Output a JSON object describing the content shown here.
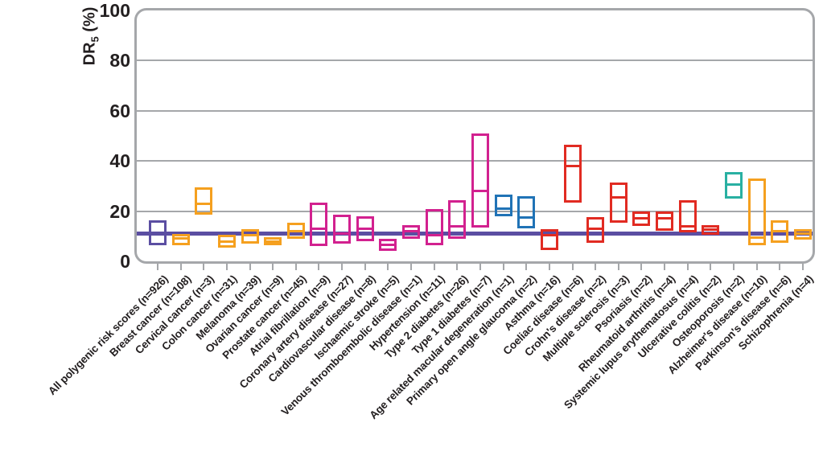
{
  "figure": {
    "ylabel": {
      "prefix": "DR",
      "sub": "5",
      "suffix": " (%)"
    }
  },
  "chart_data": {
    "type": "box",
    "title": "",
    "xlabel": "",
    "ylabel": "DR5 (%)",
    "ylim": [
      0,
      100
    ],
    "yticks": [
      0,
      20,
      40,
      60,
      80,
      100
    ],
    "grid": true,
    "legend": "none",
    "reference_line": {
      "value": 11,
      "color": "#5b4ea2"
    },
    "palette": {
      "purple": "#5b4ea2",
      "orange": "#f5a01f",
      "magenta": "#d2218f",
      "blue": "#2073b6",
      "red": "#e12b22",
      "teal": "#29b0a2"
    },
    "axis_color": "#a5a7aa",
    "text_color": "#231f20",
    "boxes": [
      {
        "label": "All polygenic risk scores (n=926)",
        "color": "purple",
        "low": 7,
        "median": 11,
        "high": 16
      },
      {
        "label": "Breast cancer (n=108)",
        "color": "orange",
        "low": 7,
        "median": 9,
        "high": 10.5
      },
      {
        "label": "Cervical cancer (n=3)",
        "color": "orange",
        "low": 19,
        "median": 23,
        "high": 29
      },
      {
        "label": "Colon cancer (n=31)",
        "color": "orange",
        "low": 6,
        "median": 8,
        "high": 10
      },
      {
        "label": "Melanoma (n=39)",
        "color": "orange",
        "low": 7.5,
        "median": 10.5,
        "high": 12.5
      },
      {
        "label": "Ovarian cancer (n=9)",
        "color": "orange",
        "low": 7,
        "median": 8,
        "high": 9
      },
      {
        "label": "Prostate cancer (n=45)",
        "color": "orange",
        "low": 9.5,
        "median": 12,
        "high": 15
      },
      {
        "label": "Atrial fibrillation (n=9)",
        "color": "magenta",
        "low": 6.5,
        "median": 13,
        "high": 23
      },
      {
        "label": "Coronary artery disease (n=27)",
        "color": "magenta",
        "low": 7.5,
        "median": 11,
        "high": 18
      },
      {
        "label": "Cardiovascular disease (n=8)",
        "color": "magenta",
        "low": 8.5,
        "median": 13,
        "high": 17.5
      },
      {
        "label": "Ischaemic stroke (n=5)",
        "color": "magenta",
        "low": 4.5,
        "median": 6.5,
        "high": 8.5
      },
      {
        "label": "Venous thromboembolic disease (n=1)",
        "color": "magenta",
        "low": 9.5,
        "median": 12,
        "high": 14
      },
      {
        "label": "Hypertension (n=11)",
        "color": "magenta",
        "low": 7,
        "median": 10.5,
        "high": 20.5
      },
      {
        "label": "Type 2 diabetes (n=26)",
        "color": "magenta",
        "low": 9.5,
        "median": 14,
        "high": 24
      },
      {
        "label": "Type 1 diabetes (n=7)",
        "color": "magenta",
        "low": 14,
        "median": 28,
        "high": 50.5
      },
      {
        "label": "Age related macular degeneration (n=1)",
        "color": "blue",
        "low": 18.5,
        "median": 21,
        "high": 26
      },
      {
        "label": "Primary open angle glaucoma (n=2)",
        "color": "blue",
        "low": 13.5,
        "median": 17.5,
        "high": 25.5
      },
      {
        "label": "Asthma (n=16)",
        "color": "red",
        "low": 5,
        "median": 10.5,
        "high": 12.5
      },
      {
        "label": "Coeliac disease (n=6)",
        "color": "red",
        "low": 24,
        "median": 38,
        "high": 46
      },
      {
        "label": "Crohn's disease (n=2)",
        "color": "red",
        "low": 8,
        "median": 13,
        "high": 17
      },
      {
        "label": "Multiple sclerosis (n=3)",
        "color": "red",
        "low": 16,
        "median": 25.5,
        "high": 31
      },
      {
        "label": "Psoriasis (n=2)",
        "color": "red",
        "low": 14.5,
        "median": 17,
        "high": 19.5
      },
      {
        "label": "Rheumatoid arthritis (n=4)",
        "color": "red",
        "low": 12.5,
        "median": 17,
        "high": 19.5
      },
      {
        "label": "Systemic lupus erythematosus (n=4)",
        "color": "red",
        "low": 12,
        "median": 14,
        "high": 24
      },
      {
        "label": "Ulcerative colitis (n=2)",
        "color": "red",
        "low": 11,
        "median": 12.5,
        "high": 14
      },
      {
        "label": "Osteoporosis (n=2)",
        "color": "teal",
        "low": 25.5,
        "median": 30.5,
        "high": 35
      },
      {
        "label": "Alzheimer's disease (n=10)",
        "color": "orange",
        "low": 7,
        "median": 9.5,
        "high": 32.5
      },
      {
        "label": "Parkinson's disease (n=6)",
        "color": "orange",
        "low": 8,
        "median": 12,
        "high": 16
      },
      {
        "label": "Schizophrenia (n=4)",
        "color": "orange",
        "low": 9,
        "median": 11,
        "high": 12.5
      }
    ]
  }
}
